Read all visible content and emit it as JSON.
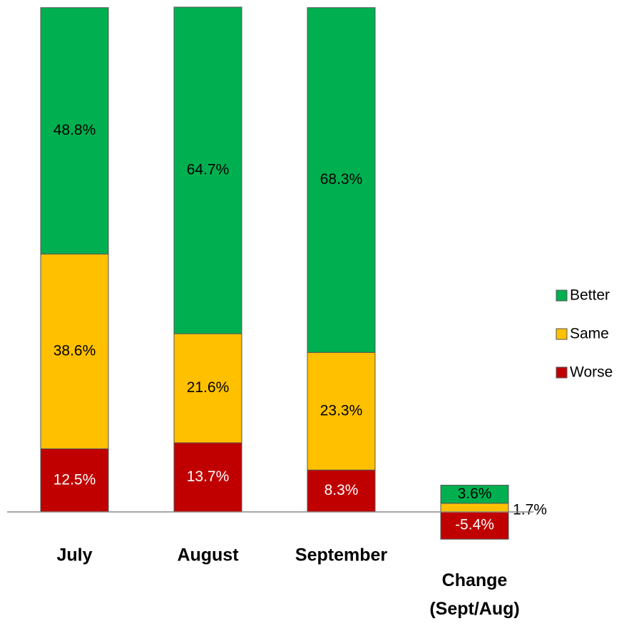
{
  "chart_data": {
    "type": "stacked_bar",
    "categories": [
      "July",
      "August",
      "September",
      "Change (Sept/Aug)"
    ],
    "series": [
      {
        "name": "Worse",
        "color": "#c00000",
        "values": [
          12.5,
          13.7,
          8.3,
          -5.4
        ],
        "value_labels": [
          "12.5%",
          "13.7%",
          "8.3%",
          "-5.4%"
        ]
      },
      {
        "name": "Same",
        "color": "#ffc000",
        "values": [
          38.6,
          21.6,
          23.3,
          1.7
        ],
        "value_labels": [
          "38.6%",
          "21.6%",
          "23.3%",
          "1.7%"
        ]
      },
      {
        "name": "Better",
        "color": "#00b050",
        "values": [
          48.8,
          64.7,
          68.3,
          3.6
        ],
        "value_labels": [
          "48.8%",
          "64.7%",
          "68.3%",
          "3.6%"
        ]
      }
    ],
    "ylim": [
      -22.6,
      100
    ],
    "legend": "right"
  }
}
